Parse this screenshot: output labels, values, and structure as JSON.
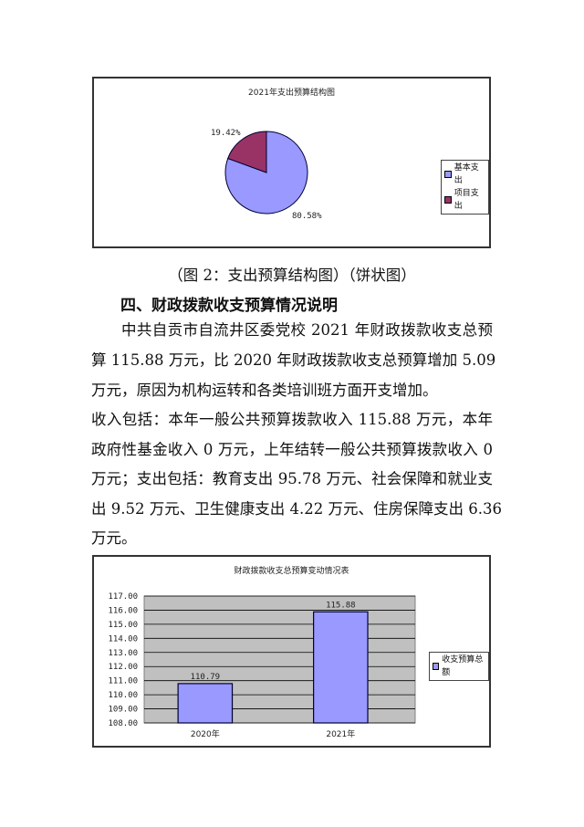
{
  "pie_chart": {
    "chart_data": {
      "type": "pie",
      "title": "2021年支出预算结构图",
      "slices": [
        {
          "label": "基本支出",
          "value": 80.58,
          "display": "80.58%",
          "color": "#9999FF"
        },
        {
          "label": "项目支出",
          "value": 19.42,
          "display": "19.42%",
          "color": "#993366"
        }
      ],
      "legend_position": "right"
    }
  },
  "caption": "（图 2：支出预算结构图）（饼状图）",
  "section_heading": "四、财政拨款收支预算情况说明",
  "paragraph_lines": [
    "中共自贡市自流井区委党校 2021 年财政拨款收支总预",
    "算 115.88 万元，比 2020 年财政拨款收支总预算增加 5.09",
    "万元，原因为机构运转和各类培训班方面开支增加。",
    "收入包括：本年一般公共预算拨款收入 115.88 万元，本年",
    "政府性基金收入 0 万元，上年结转一般公共预算拨款收入 0",
    "万元；支出包括：教育支出 95.78 万元、社会保障和就业支",
    "出 9.52 万元、卫生健康支出 4.22 万元、住房保障支出 6.36",
    "万元。"
  ],
  "bar_chart": {
    "chart_data": {
      "type": "bar",
      "title": "财政拨款收支总预算变动情况表",
      "categories": [
        "2020年",
        "2021年"
      ],
      "series": [
        {
          "name": "收支预算总额",
          "values": [
            110.79,
            115.88
          ],
          "color": "#9999FF"
        }
      ],
      "data_labels": [
        "110.79",
        "115.88"
      ],
      "ylim": [
        108,
        117
      ],
      "yticks": [
        "108.00",
        "109.00",
        "110.00",
        "111.00",
        "112.00",
        "113.00",
        "114.00",
        "115.00",
        "116.00",
        "117.00"
      ],
      "grid": true,
      "plot_background": "#C0C0C0",
      "legend_position": "right"
    }
  }
}
